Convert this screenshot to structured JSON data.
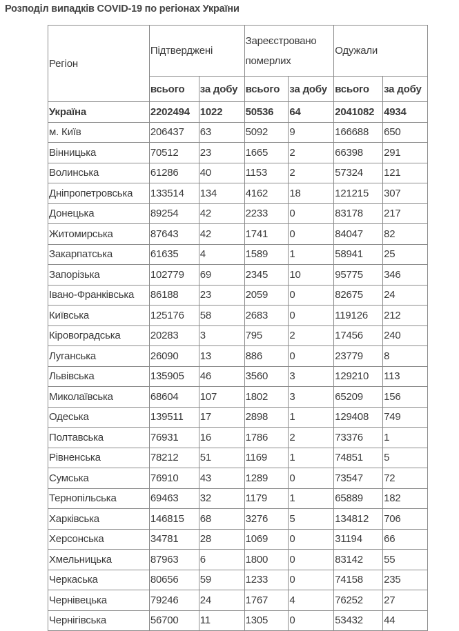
{
  "title": "Розподіл випадків COVID-19 по регіонах України",
  "headers": {
    "region": "Регіон",
    "confirmed": "Підтверджені",
    "deaths_line1": "Зареєстровано",
    "deaths_line2": "померлих",
    "recovered": "Одужали",
    "total": "всього",
    "daily": "за добу"
  },
  "rows": [
    [
      "Україна",
      "2202494",
      "1022",
      "50536",
      "64",
      "2041082",
      "4934"
    ],
    [
      "м. Київ",
      "206437",
      "63",
      "5092",
      "9",
      "166688",
      "650"
    ],
    [
      "Вінницька",
      "70512",
      "23",
      "1665",
      "2",
      "66398",
      "291"
    ],
    [
      "Волинська",
      "61286",
      "40",
      "1153",
      "2",
      "57324",
      "121"
    ],
    [
      "Дніпропетровська",
      "133514",
      "134",
      "4162",
      "18",
      "121215",
      "307"
    ],
    [
      "Донецька",
      "89254",
      "42",
      "2233",
      "0",
      "83178",
      "217"
    ],
    [
      "Житомирська",
      "87643",
      "42",
      "1741",
      "0",
      "84047",
      "82"
    ],
    [
      "Закарпатська",
      "61635",
      "4",
      "1589",
      "1",
      "58941",
      "25"
    ],
    [
      "Запорізька",
      "102779",
      "69",
      "2345",
      "10",
      "95775",
      "346"
    ],
    [
      "Івано-Франківська",
      "86188",
      "23",
      "2059",
      "0",
      "82675",
      "24"
    ],
    [
      "Київська",
      "125176",
      "58",
      "2683",
      "0",
      "119126",
      "212"
    ],
    [
      "Кіровоградська",
      "20283",
      "3",
      "795",
      "2",
      "17456",
      "240"
    ],
    [
      "Луганська",
      "26090",
      "13",
      "886",
      "0",
      "23779",
      "8"
    ],
    [
      "Львівська",
      "135905",
      "46",
      "3560",
      "3",
      "129210",
      "113"
    ],
    [
      "Миколаївська",
      "68604",
      "107",
      "1802",
      "3",
      "65209",
      "156"
    ],
    [
      "Одеська",
      "139511",
      "17",
      "2898",
      "1",
      "129408",
      "749"
    ],
    [
      "Полтавська",
      "76931",
      "16",
      "1786",
      "2",
      "73376",
      "1"
    ],
    [
      "Рівненська",
      "78212",
      "51",
      "1169",
      "1",
      "74851",
      "5"
    ],
    [
      "Сумська",
      "76910",
      "43",
      "1289",
      "0",
      "73547",
      "72"
    ],
    [
      "Тернопільська",
      "69463",
      "32",
      "1179",
      "1",
      "65889",
      "182"
    ],
    [
      "Харківська",
      "146815",
      "68",
      "3276",
      "5",
      "134812",
      "706"
    ],
    [
      "Херсонська",
      "34781",
      "28",
      "1069",
      "0",
      "31194",
      "66"
    ],
    [
      "Хмельницька",
      "87963",
      "6",
      "1800",
      "0",
      "83142",
      "55"
    ],
    [
      "Черкаська",
      "80656",
      "59",
      "1233",
      "0",
      "74158",
      "235"
    ],
    [
      "Чернівецька",
      "79246",
      "24",
      "1767",
      "4",
      "76252",
      "27"
    ],
    [
      "Чернігівська",
      "56700",
      "11",
      "1305",
      "0",
      "53432",
      "44"
    ]
  ]
}
